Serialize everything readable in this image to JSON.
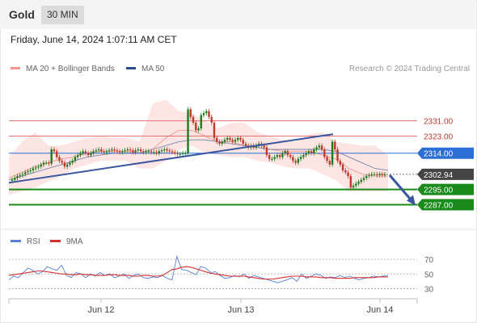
{
  "header": {
    "instrument": "Gold",
    "timeframe": "30 MIN"
  },
  "datetime": "Friday, June 14, 2024 1:07:11 AM CET",
  "legend": {
    "items": [
      {
        "label": "MA 20 + Bollinger Bands",
        "color": "#f4978e"
      },
      {
        "label": "MA 50",
        "color": "#2b4a8b"
      }
    ],
    "credit": "Research © 2024 Trading Central"
  },
  "colors": {
    "candle_up": "#1e7a1e",
    "candle_down": "#c0392b",
    "resistance": "#e57373",
    "pivot": "#2b6fd6",
    "support": "#1a8a1a",
    "last_price": "#444444",
    "bands_fill": "#fde0df",
    "ma20": "#f4978e",
    "ma50": "#7a86a8",
    "trendline": "#3a56a0",
    "rsi": "#5b7fd6",
    "rsi_ma": "#d32f2f"
  },
  "chart_data": [
    {
      "type": "candlestick",
      "ylim": [
        2280,
        2352
      ],
      "x_ticks": [
        "Jun 12",
        "Jun 13",
        "Jun 14"
      ],
      "levels": [
        {
          "label": "2331.00",
          "value": 2331.0,
          "kind": "resistance"
        },
        {
          "label": "2323.00",
          "value": 2323.0,
          "kind": "resistance"
        },
        {
          "label": "2314.00",
          "value": 2314.0,
          "kind": "pivot"
        },
        {
          "label": "2302.94",
          "value": 2302.94,
          "kind": "last"
        },
        {
          "label": "2295.00",
          "value": 2295.0,
          "kind": "support"
        },
        {
          "label": "2287.00",
          "value": 2287.0,
          "kind": "support"
        }
      ],
      "close": [
        2300,
        2301,
        2302,
        2302.5,
        2303,
        2304,
        2304.5,
        2305,
        2306,
        2306.5,
        2307,
        2308,
        2309,
        2309,
        2308.5,
        2316,
        2315,
        2312,
        2310,
        2309,
        2307,
        2308,
        2309,
        2310,
        2312,
        2313,
        2314,
        2315,
        2314,
        2313,
        2314,
        2315,
        2315.5,
        2316,
        2315,
        2314.5,
        2315,
        2315.5,
        2316,
        2315.5,
        2315,
        2314.5,
        2315,
        2315.5,
        2316,
        2315.5,
        2314.5,
        2315.5,
        2316,
        2315,
        2314.5,
        2315,
        2315,
        2314.5,
        2314.5,
        2314,
        2315,
        2315.5,
        2316,
        2315.5,
        2315,
        2314.5,
        2314,
        2313.5,
        2313.5,
        2314,
        2314,
        2337,
        2333,
        2330,
        2326,
        2327,
        2334,
        2335,
        2336,
        2333,
        2330,
        2322,
        2320,
        2319,
        2320,
        2321,
        2322,
        2321,
        2320,
        2321,
        2322,
        2321,
        2319,
        2318,
        2317,
        2318,
        2317,
        2318,
        2319,
        2318,
        2317,
        2313,
        2311,
        2311,
        2312,
        2313,
        2312,
        2314,
        2315,
        2313,
        2312,
        2310,
        2309,
        2311,
        2312,
        2313,
        2314,
        2315,
        2314,
        2316,
        2317,
        2318,
        2316,
        2312,
        2310,
        2308,
        2320,
        2316,
        2310,
        2308,
        2305,
        2304,
        2302,
        2296,
        2297,
        2298,
        2299,
        2300,
        2301,
        2302,
        2302.5,
        2303,
        2303,
        2302.5,
        2303,
        2302.5,
        2302.94
      ],
      "bollinger": {
        "upper": [
          2312,
          2320,
          2325,
          2318,
          2318,
          2320,
          2322,
          2323,
          2322,
          2322,
          2320,
          2340,
          2342,
          2336,
          2335,
          2331,
          2327,
          2330,
          2330,
          2325,
          2323,
          2321,
          2320,
          2324,
          2325,
          2320,
          2319,
          2318,
          2318,
          2313
        ],
        "lower": [
          2292,
          2294,
          2296,
          2299,
          2302,
          2306,
          2308,
          2310,
          2310,
          2310,
          2306,
          2306,
          2310,
          2316,
          2318,
          2314,
          2313,
          2312,
          2312,
          2310,
          2309,
          2307,
          2306,
          2306,
          2303,
          2300,
          2294,
          2294,
          2294,
          2294
        ]
      },
      "ma20": [
        2301,
        2304,
        2307,
        2309,
        2311,
        2312,
        2314,
        2315,
        2315,
        2315,
        2314,
        2316,
        2322,
        2326,
        2326,
        2323,
        2320,
        2320,
        2318,
        2317,
        2316,
        2315,
        2315,
        2315,
        2313,
        2311,
        2306,
        2303,
        2302,
        2302
      ],
      "ma50": [
        2300,
        2302,
        2304,
        2306,
        2308,
        2310,
        2312,
        2313,
        2314,
        2314,
        2314,
        2316,
        2318,
        2320,
        2321,
        2321,
        2320,
        2319,
        2318,
        2317,
        2316,
        2316,
        2316,
        2316,
        2316,
        2315,
        2312,
        2309,
        2306,
        2305
      ],
      "trendline": {
        "from": 2298.5,
        "to": 2324
      },
      "projection": {
        "from": 2302.5,
        "to": 2287
      }
    },
    {
      "type": "line",
      "title": "RSI",
      "ylim": [
        25,
        80
      ],
      "y_ticks": [
        70,
        50,
        30
      ],
      "series": [
        {
          "name": "RSI",
          "values": [
            42,
            47,
            45,
            52,
            58,
            55,
            50,
            53,
            60,
            57,
            55,
            62,
            48,
            45,
            52,
            50,
            45,
            50,
            47,
            52,
            48,
            50,
            45,
            47,
            50,
            44,
            48,
            50,
            45,
            44,
            46,
            45,
            48,
            44,
            42,
            74,
            56,
            55,
            52,
            49,
            60,
            58,
            52,
            53,
            48,
            44,
            45,
            48,
            46,
            50,
            44,
            48,
            46,
            44,
            42,
            40,
            38,
            40,
            42,
            45,
            40,
            50,
            44,
            47,
            50,
            48,
            44,
            46,
            45,
            48,
            45,
            47,
            44,
            42,
            44,
            45,
            47,
            46,
            47,
            48
          ]
        },
        {
          "name": "9MA",
          "values": [
            48,
            49,
            50,
            51,
            52,
            53,
            54,
            54,
            53,
            52,
            51,
            50,
            50,
            49,
            49,
            50,
            49,
            49,
            48,
            48,
            48,
            49,
            49,
            48,
            48,
            48,
            47,
            47,
            48,
            48,
            47,
            47,
            48,
            52,
            56,
            57,
            59,
            60,
            59,
            57,
            55,
            53,
            51,
            50,
            49,
            48,
            47,
            47,
            47,
            47,
            46,
            45,
            44,
            43,
            43,
            43,
            44,
            45,
            46,
            47,
            47,
            47,
            46,
            46,
            46,
            45,
            45,
            45,
            44,
            44,
            44,
            44,
            45,
            45,
            45,
            45,
            45,
            46,
            46,
            46
          ]
        }
      ]
    }
  ]
}
